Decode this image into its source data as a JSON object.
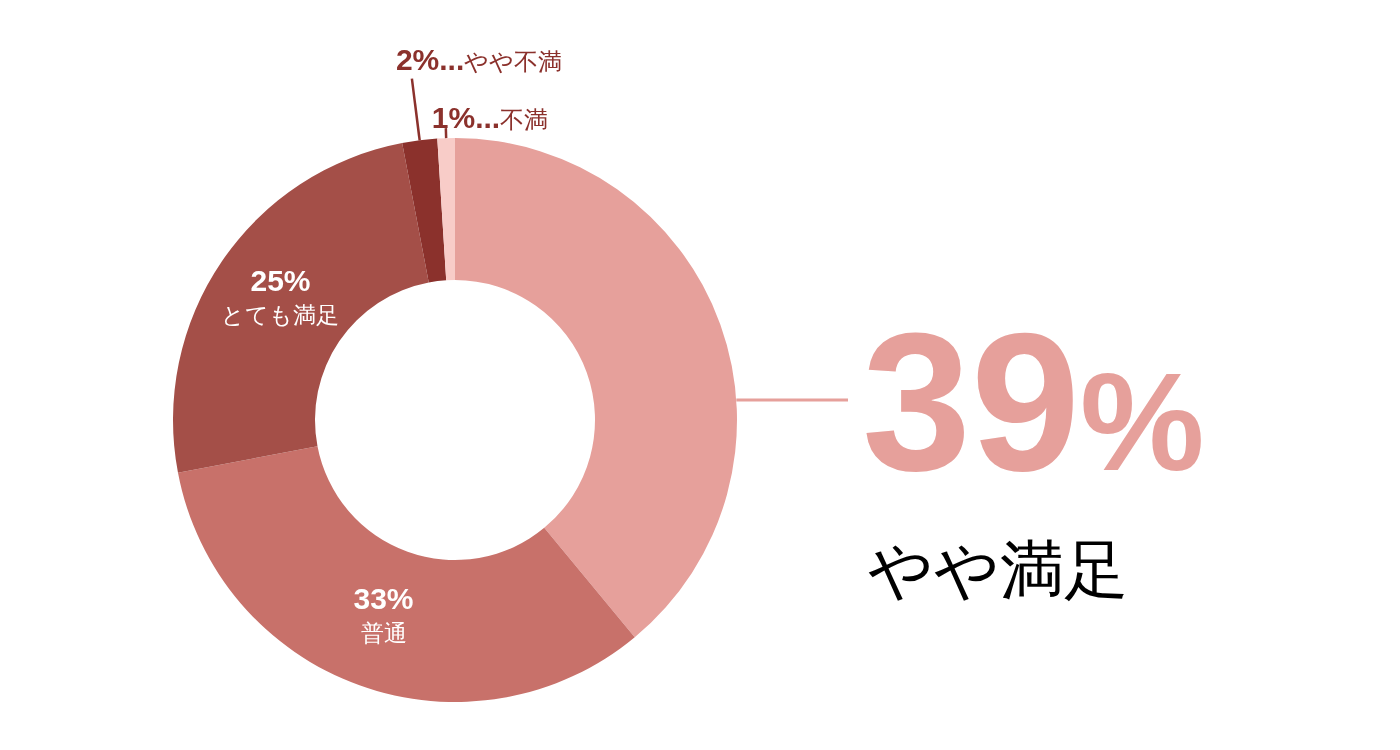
{
  "chart_data": {
    "type": "donut",
    "categories": [
      "やや満足",
      "普通",
      "とても満足",
      "やや不満",
      "不満"
    ],
    "values": [
      39,
      33,
      25,
      2,
      1
    ],
    "colors": [
      "#e6a09b",
      "#c8716a",
      "#a44f48",
      "#8b312c",
      "#f8ccc8"
    ],
    "value_labels": [
      "39%",
      "33%",
      "25%",
      "2%...",
      "1%..."
    ]
  }
}
